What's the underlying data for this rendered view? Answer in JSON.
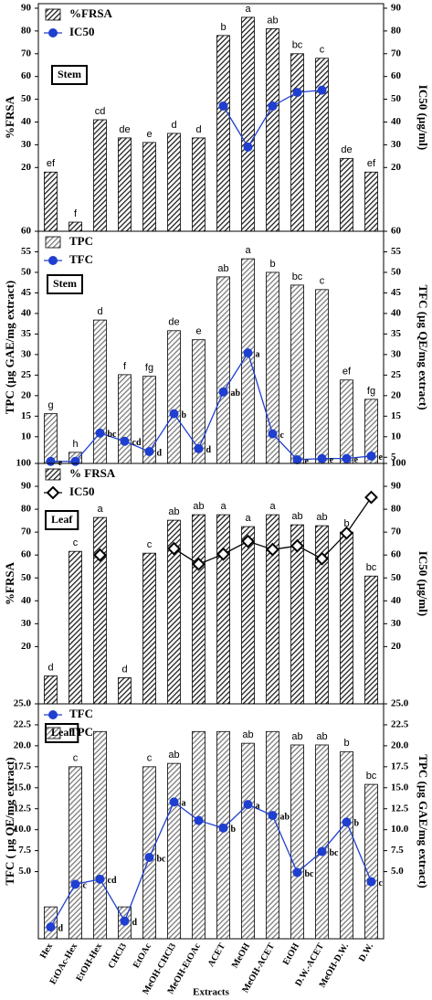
{
  "chart_data": [
    {
      "type": "bar",
      "label": "Stem",
      "ylabel": "%FRSA",
      "y2label": "IC50 (µg/ml)",
      "ylim": [
        -8,
        92
      ],
      "yticks": [
        20,
        30,
        40,
        50,
        60,
        70,
        80,
        90
      ],
      "y2lim": [
        -8,
        92
      ],
      "y2ticks": [
        20,
        30,
        40,
        50,
        60,
        70,
        80,
        90
      ],
      "series": [
        {
          "name": "%FRSA",
          "color": "#1e1e1e",
          "values": [
            18,
            -4,
            41,
            33,
            31,
            35,
            33,
            78,
            86,
            81,
            70,
            68,
            24,
            18
          ],
          "letters": [
            "ef",
            "f",
            "cd",
            "de",
            "e",
            "d",
            "d",
            "b",
            "a",
            "ab",
            "bc",
            "c",
            "de",
            "ef"
          ]
        },
        {
          "name": "IC50",
          "type": "line",
          "axis": "y2",
          "marker": "circle",
          "color": "#1f3fd0",
          "values": [
            null,
            null,
            null,
            null,
            null,
            null,
            null,
            47,
            29,
            47,
            53,
            54,
            null,
            null
          ]
        }
      ]
    },
    {
      "type": "bar",
      "label": "Stem",
      "ylabel": "TPC (µg GAE/mg extract)",
      "y2label": "TFC (µg QE/mg extract)",
      "ylim": [
        3.5,
        60
      ],
      "yticks": [
        10,
        15,
        20,
        25,
        30,
        35,
        40,
        45,
        50,
        55,
        60
      ],
      "y2lim": [
        3.5,
        60
      ],
      "y2ticks": [
        5,
        10,
        15,
        20,
        25,
        30,
        35,
        40,
        45,
        50,
        55,
        60
      ],
      "series": [
        {
          "name": "TPC",
          "color": "#7a7a7a",
          "values": [
            15.6,
            6.2,
            38.4,
            25.1,
            24.7,
            35.8,
            33.6,
            48.9,
            53.3,
            50,
            46.9,
            45.8,
            23.8,
            19.1
          ],
          "letters": [
            "g",
            "h",
            "d",
            "f",
            "fg",
            "de",
            "e",
            "ab",
            "a",
            "b",
            "bc",
            "c",
            "ef",
            "fg"
          ]
        },
        {
          "name": "TFC",
          "type": "line",
          "axis": "y2",
          "marker": "circle",
          "color": "#1f3fd0",
          "values": [
            4,
            4,
            10.9,
            8.9,
            6.4,
            15.6,
            7.1,
            20.9,
            30.4,
            10.7,
            4.4,
            4.7,
            4.7,
            5.3
          ],
          "letters": [
            "e",
            null,
            "bc",
            "cd",
            "d",
            "b",
            "d",
            "ab",
            "a",
            "c",
            "e",
            "e",
            "e",
            "e"
          ]
        }
      ]
    },
    {
      "type": "bar",
      "label": "Leaf",
      "ylabel": "%FRSA",
      "y2label": "IC50 (µg/ml)",
      "ylim": [
        -5,
        100
      ],
      "yticks": [
        20,
        30,
        40,
        50,
        60,
        70,
        80,
        90,
        100
      ],
      "y2lim": [
        -5,
        100
      ],
      "y2ticks": [
        20,
        30,
        40,
        50,
        60,
        70,
        80,
        90,
        100
      ],
      "series": [
        {
          "name": "% FRSA",
          "color": "#1e1e1e",
          "values": [
            7.2,
            61.6,
            76.4,
            6.4,
            60.8,
            75.2,
            77.6,
            77.6,
            72.4,
            77.6,
            73.2,
            72.8,
            70,
            50.8
          ],
          "letters": [
            "d",
            "c",
            "a",
            "d",
            "c",
            "ab",
            "ab",
            "a",
            "a",
            "a",
            "ab",
            "ab",
            "b",
            "bc"
          ]
        },
        {
          "name": "IC50",
          "type": "line",
          "axis": "y2",
          "marker": "diamond",
          "color": "#000000",
          "values": [
            null,
            null,
            60,
            null,
            null,
            62.8,
            56,
            60.4,
            66,
            62.4,
            64,
            58.4,
            69.6,
            85.2
          ]
        }
      ]
    },
    {
      "type": "bar",
      "label": "Leaf",
      "ylabel": "TFC ( µg QE/mg extract)",
      "y2label": "TPC (µg GAE/mg extract)",
      "xlabel": "Extracts",
      "categories": [
        "Hex",
        "EtOAc-Hex",
        "EtOH-Hex",
        "CHCl3",
        "EtOAc",
        "MeOH-CHCl3",
        "MeOH-EtOAc",
        "ACET",
        "MeOH",
        "MeOH-ACET",
        "EtOH",
        "D.W.-ACET",
        "MeOH-D.W.",
        "D.W."
      ],
      "ylim": [
        -3,
        25
      ],
      "yticks": [
        {
          "value": 5,
          "label": "5.0"
        },
        {
          "value": 7.5,
          "label": "7.5"
        },
        {
          "value": 10,
          "label": "10.0"
        },
        {
          "value": 12.5,
          "label": "12.5"
        },
        {
          "value": 15,
          "label": "15.0"
        },
        {
          "value": 17.5,
          "label": "17.5"
        },
        {
          "value": 20,
          "label": "20.0"
        },
        {
          "value": 22.5,
          "label": "22.5"
        },
        {
          "value": 25,
          "label": "25.0"
        }
      ],
      "y2lim": [
        -3,
        25
      ],
      "y2ticks": [
        {
          "value": 5,
          "label": "5.0"
        },
        {
          "value": 7.5,
          "label": "7.5"
        },
        {
          "value": 10,
          "label": "10.0"
        },
        {
          "value": 12.5,
          "label": "12.5"
        },
        {
          "value": 15,
          "label": "15.0"
        },
        {
          "value": 17.5,
          "label": "17.5"
        },
        {
          "value": 20,
          "label": "20.0"
        },
        {
          "value": 22.5,
          "label": "22.5"
        },
        {
          "value": 25,
          "label": "25.0"
        }
      ],
      "series": [
        {
          "name": "TFC",
          "type": "line",
          "marker": "circle",
          "color": "#1f3fd0",
          "values": [
            -1.6,
            3.5,
            4.1,
            -0.9,
            6.7,
            13.3,
            11.1,
            10.2,
            13,
            11.7,
            4.9,
            7.4,
            10.9,
            3.8
          ],
          "letters": [
            "d",
            "c",
            "cd",
            "d",
            "bc",
            "a",
            null,
            "b",
            "a",
            "ab",
            "bc",
            "bc",
            "b",
            "c"
          ]
        },
        {
          "name": "TPC",
          "axis": "y2",
          "color": "#7a7a7a",
          "values": [
            0.8,
            17.5,
            21.7,
            0.8,
            17.5,
            17.9,
            21.7,
            21.7,
            20.3,
            21.7,
            20.1,
            20.1,
            19.3,
            15.4
          ],
          "letters": [
            null,
            "c",
            null,
            null,
            "c",
            "ab",
            null,
            null,
            "ab",
            null,
            "ab",
            "ab",
            "b",
            "bc"
          ]
        }
      ]
    }
  ]
}
